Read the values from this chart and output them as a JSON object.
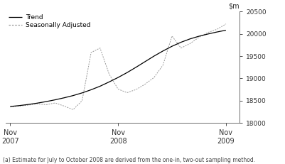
{
  "footnote": "(a) Estimate for July to October 2008 are derived from the one-in, two-out sampling method.",
  "ylim": [
    18000,
    20500
  ],
  "yticks": [
    18000,
    18500,
    19000,
    19500,
    20000,
    20500
  ],
  "xtick_positions": [
    0,
    12,
    24
  ],
  "xtick_labels": [
    "Nov\n2007",
    "Nov\n2008",
    "Nov\n2009"
  ],
  "trend_color": "#000000",
  "seasonal_color": "#999999",
  "bg_color": "#ffffff",
  "trend_x": [
    0,
    1,
    2,
    3,
    4,
    5,
    6,
    7,
    8,
    9,
    10,
    11,
    12,
    13,
    14,
    15,
    16,
    17,
    18,
    19,
    20,
    21,
    22,
    23,
    24
  ],
  "trend_y": [
    18370,
    18390,
    18415,
    18445,
    18480,
    18520,
    18565,
    18615,
    18675,
    18745,
    18825,
    18920,
    19020,
    19130,
    19250,
    19375,
    19500,
    19615,
    19720,
    19810,
    19885,
    19945,
    19995,
    20040,
    20080
  ],
  "seasonal_x": [
    0,
    1,
    2,
    3,
    4,
    5,
    6,
    7,
    8,
    9,
    10,
    11,
    12,
    13,
    14,
    15,
    16,
    17,
    18,
    19,
    20,
    21,
    22,
    23,
    24
  ],
  "seasonal_y": [
    18360,
    18380,
    18400,
    18430,
    18410,
    18450,
    18380,
    18300,
    18500,
    19580,
    19680,
    19100,
    18760,
    18680,
    18750,
    18870,
    19020,
    19300,
    19950,
    19680,
    19780,
    19920,
    20030,
    20100,
    20220
  ],
  "legend_trend": "Trend",
  "legend_seasonal": "Seasonally Adjusted",
  "trend_linewidth": 0.9,
  "seasonal_linewidth": 0.7
}
